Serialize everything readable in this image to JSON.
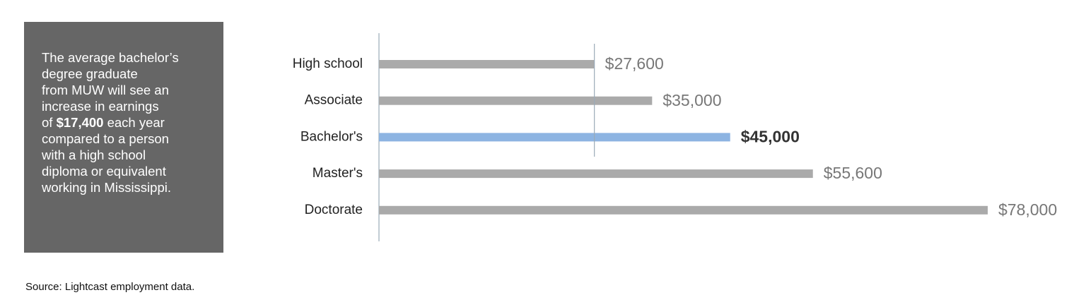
{
  "chart_data": {
    "type": "bar",
    "orientation": "horizontal",
    "categories": [
      "High school",
      "Associate",
      "Bachelor's",
      "Master's",
      "Doctorate"
    ],
    "values": [
      27600,
      35000,
      45000,
      55600,
      78000
    ],
    "value_labels": [
      "$27,600",
      "$35,000",
      "$45,000",
      "$55,600",
      "$78,000"
    ],
    "colors": [
      "#aaaaaa",
      "#aaaaaa",
      "#8db4e2",
      "#aaaaaa",
      "#aaaaaa"
    ],
    "bold_labels": [
      false,
      false,
      true,
      false,
      false
    ],
    "reference_line": 27600
  },
  "annotation": {
    "lines": [
      "The average bachelor’s",
      "degree graduate",
      "from MUW will see an",
      "increase in earnings",
      {
        "before": "of ",
        "bold": "$17,400",
        "after": " each year"
      },
      "compared to a person",
      "with a high school",
      "diploma or equivalent",
      "working in Mississippi."
    ]
  },
  "source": "Source: Lightcast employment data."
}
